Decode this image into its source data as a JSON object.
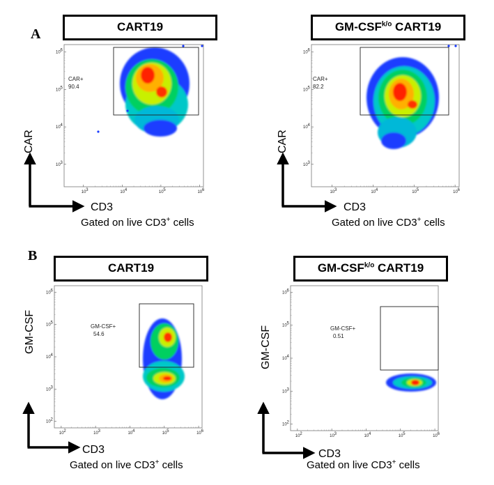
{
  "panels": {
    "A": {
      "letter": "A"
    },
    "B": {
      "letter": "B"
    }
  },
  "chart_data": [
    {
      "type": "scatter",
      "subtype": "flow-cytometry-density",
      "title_main": "CART19",
      "title_sup": "",
      "title_tail": "",
      "xlabel": "CD3",
      "ylabel": "CAR",
      "gating_text": "Gated on live CD3",
      "gating_sup": "+",
      "gating_tail": " cells",
      "x_scale": "log",
      "y_scale": "log",
      "x_ticks": [
        "10",
        "10",
        "10",
        "10"
      ],
      "x_tick_exp": [
        "3",
        "4",
        "5",
        "6"
      ],
      "y_ticks": [
        "10",
        "10",
        "10",
        "10"
      ],
      "y_tick_exp": [
        "3",
        "4",
        "5",
        "6"
      ],
      "gate": {
        "name": "CAR+",
        "percent": "90.4",
        "x_range": [
          5000,
          800000
        ],
        "y_range": [
          20000,
          1100000
        ]
      },
      "population": {
        "x_center": 40000,
        "y_center": 180000
      }
    },
    {
      "type": "scatter",
      "subtype": "flow-cytometry-density",
      "title_main": "GM-CSF",
      "title_sup": "k/o",
      "title_tail": " CART19",
      "xlabel": "CD3",
      "ylabel": "CAR",
      "gating_text": "Gated on live CD3",
      "gating_sup": "+",
      "gating_tail": " cells",
      "x_scale": "log",
      "y_scale": "log",
      "x_ticks": [
        "10",
        "10",
        "10",
        "10"
      ],
      "x_tick_exp": [
        "3",
        "4",
        "5",
        "6"
      ],
      "y_ticks": [
        "10",
        "10",
        "10",
        "10"
      ],
      "y_tick_exp": [
        "3",
        "4",
        "5",
        "6"
      ],
      "gate": {
        "name": "CAR+",
        "percent": "82.2",
        "x_range": [
          5000,
          800000
        ],
        "y_range": [
          20000,
          1100000
        ]
      },
      "population": {
        "x_center": 50000,
        "y_center": 100000
      }
    },
    {
      "type": "scatter",
      "subtype": "flow-cytometry-density",
      "title_main": "CART19",
      "title_sup": "",
      "title_tail": "",
      "xlabel": "CD3",
      "ylabel": "GM-CSF",
      "gating_text": "Gated on live CD3",
      "gating_sup": "+",
      "gating_tail": " cells",
      "x_scale": "log",
      "y_scale": "log",
      "x_ticks": [
        "10",
        "10",
        "10",
        "10",
        "10"
      ],
      "x_tick_exp": [
        "2",
        "3",
        "4",
        "5",
        "6"
      ],
      "y_ticks": [
        "10",
        "10",
        "10",
        "10",
        "10"
      ],
      "y_tick_exp": [
        "2",
        "3",
        "4",
        "5",
        "6"
      ],
      "gate": {
        "name": "GM-CSF+",
        "percent": "54.6",
        "x_range": [
          40000,
          800000
        ],
        "y_range": [
          6000,
          900000
        ]
      },
      "population": {
        "x_center": 200000,
        "y_center": 40000
      }
    },
    {
      "type": "scatter",
      "subtype": "flow-cytometry-density",
      "title_main": "GM-CSF",
      "title_sup": "k/o",
      "title_tail": " CART19",
      "xlabel": "CD3",
      "ylabel": "GM-CSF",
      "gating_text": "Gated on live CD3",
      "gating_sup": "+",
      "gating_tail": " cells",
      "x_scale": "log",
      "y_scale": "log",
      "x_ticks": [
        "10",
        "10",
        "10",
        "10",
        "10"
      ],
      "x_tick_exp": [
        "2",
        "3",
        "4",
        "5",
        "6"
      ],
      "y_ticks": [
        "10",
        "10",
        "10",
        "10",
        "10"
      ],
      "y_tick_exp": [
        "2",
        "3",
        "4",
        "5",
        "6"
      ],
      "gate": {
        "name": "GM-CSF+",
        "percent": "0.51",
        "x_range": [
          40000,
          800000
        ],
        "y_range": [
          6000,
          900000
        ]
      },
      "population": {
        "x_center": 150000,
        "y_center": 2500
      }
    }
  ]
}
